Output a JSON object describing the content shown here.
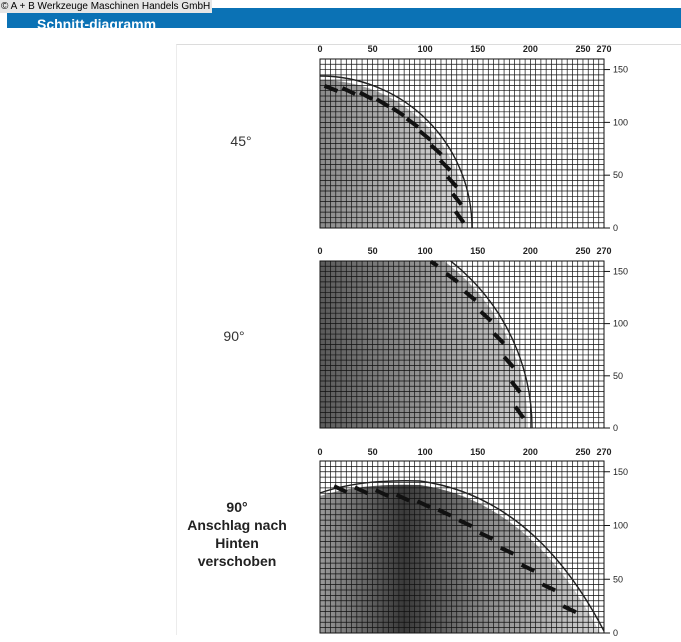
{
  "header": {
    "copyright": "© A + B Werkzeuge Maschinen Handels GmbH",
    "title": "Schnitt-diagramm"
  },
  "diagrams": [
    {
      "angle_label": [
        "45°"
      ],
      "x_ticks": [
        "0",
        "50",
        "100",
        "150",
        "200",
        "250",
        "270"
      ],
      "y_ticks": [
        "150",
        "100",
        "50",
        "0"
      ]
    },
    {
      "angle_label": [
        "90°"
      ],
      "x_ticks": [
        "0",
        "50",
        "100",
        "150",
        "200",
        "250",
        "270"
      ],
      "y_ticks": [
        "150",
        "100",
        "50",
        "0"
      ]
    },
    {
      "angle_label": [
        "90°",
        "Anschlag nach",
        "Hinten",
        "verschoben"
      ],
      "x_ticks": [
        "0",
        "50",
        "100",
        "150",
        "200",
        "250",
        "270"
      ],
      "y_ticks": [
        "150",
        "100",
        "50",
        "0"
      ]
    }
  ],
  "colors": {
    "header_bg": "#0b72b5",
    "grid_line": "#111111",
    "shade_dark": "#444444",
    "shade_light": "#d8d8d8"
  }
}
